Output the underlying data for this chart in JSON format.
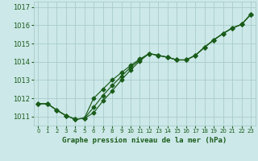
{
  "title": "Graphe pression niveau de la mer (hPa)",
  "bg_color": "#cce8e8",
  "grid_color": "#aacccc",
  "line_color": "#1a5c1a",
  "xlim": [
    -0.5,
    23.5
  ],
  "ylim": [
    1010.5,
    1017.3
  ],
  "yticks": [
    1011,
    1012,
    1013,
    1014,
    1015,
    1016,
    1017
  ],
  "xticks": [
    0,
    1,
    2,
    3,
    4,
    5,
    6,
    7,
    8,
    9,
    10,
    11,
    12,
    13,
    14,
    15,
    16,
    17,
    18,
    19,
    20,
    21,
    22,
    23
  ],
  "series1_x": [
    0,
    1,
    2,
    3,
    4,
    5,
    6,
    7,
    8,
    9,
    10,
    11,
    12,
    13,
    14,
    15,
    16,
    17,
    18,
    19,
    20,
    21,
    22,
    23
  ],
  "series1_y": [
    1011.7,
    1011.7,
    1011.35,
    1011.05,
    1010.85,
    1010.9,
    1011.2,
    1011.85,
    1012.4,
    1013.0,
    1013.55,
    1014.05,
    1014.45,
    1014.35,
    1014.25,
    1014.1,
    1014.1,
    1014.35,
    1014.8,
    1015.2,
    1015.55,
    1015.85,
    1016.05,
    1016.6
  ],
  "series2_x": [
    0,
    1,
    2,
    3,
    4,
    5,
    6,
    7,
    8,
    9,
    10,
    11,
    12,
    13,
    14,
    15,
    16,
    17,
    18,
    19,
    20,
    21,
    22,
    23
  ],
  "series2_y": [
    1011.7,
    1011.7,
    1011.35,
    1011.05,
    1010.85,
    1010.9,
    1011.5,
    1012.15,
    1012.7,
    1013.2,
    1013.7,
    1014.1,
    1014.45,
    1014.35,
    1014.25,
    1014.1,
    1014.1,
    1014.35,
    1014.8,
    1015.2,
    1015.55,
    1015.85,
    1016.05,
    1016.6
  ],
  "series3_x": [
    0,
    1,
    2,
    3,
    4,
    5,
    6,
    7,
    8,
    9,
    10,
    11,
    12,
    13,
    14,
    15,
    16,
    17,
    18,
    19,
    20,
    21,
    22,
    23
  ],
  "series3_y": [
    1011.7,
    1011.7,
    1011.35,
    1011.05,
    1010.85,
    1010.9,
    1012.0,
    1012.5,
    1013.0,
    1013.4,
    1013.8,
    1014.15,
    1014.45,
    1014.35,
    1014.25,
    1014.1,
    1014.1,
    1014.35,
    1014.8,
    1015.2,
    1015.55,
    1015.85,
    1016.05,
    1016.6
  ]
}
